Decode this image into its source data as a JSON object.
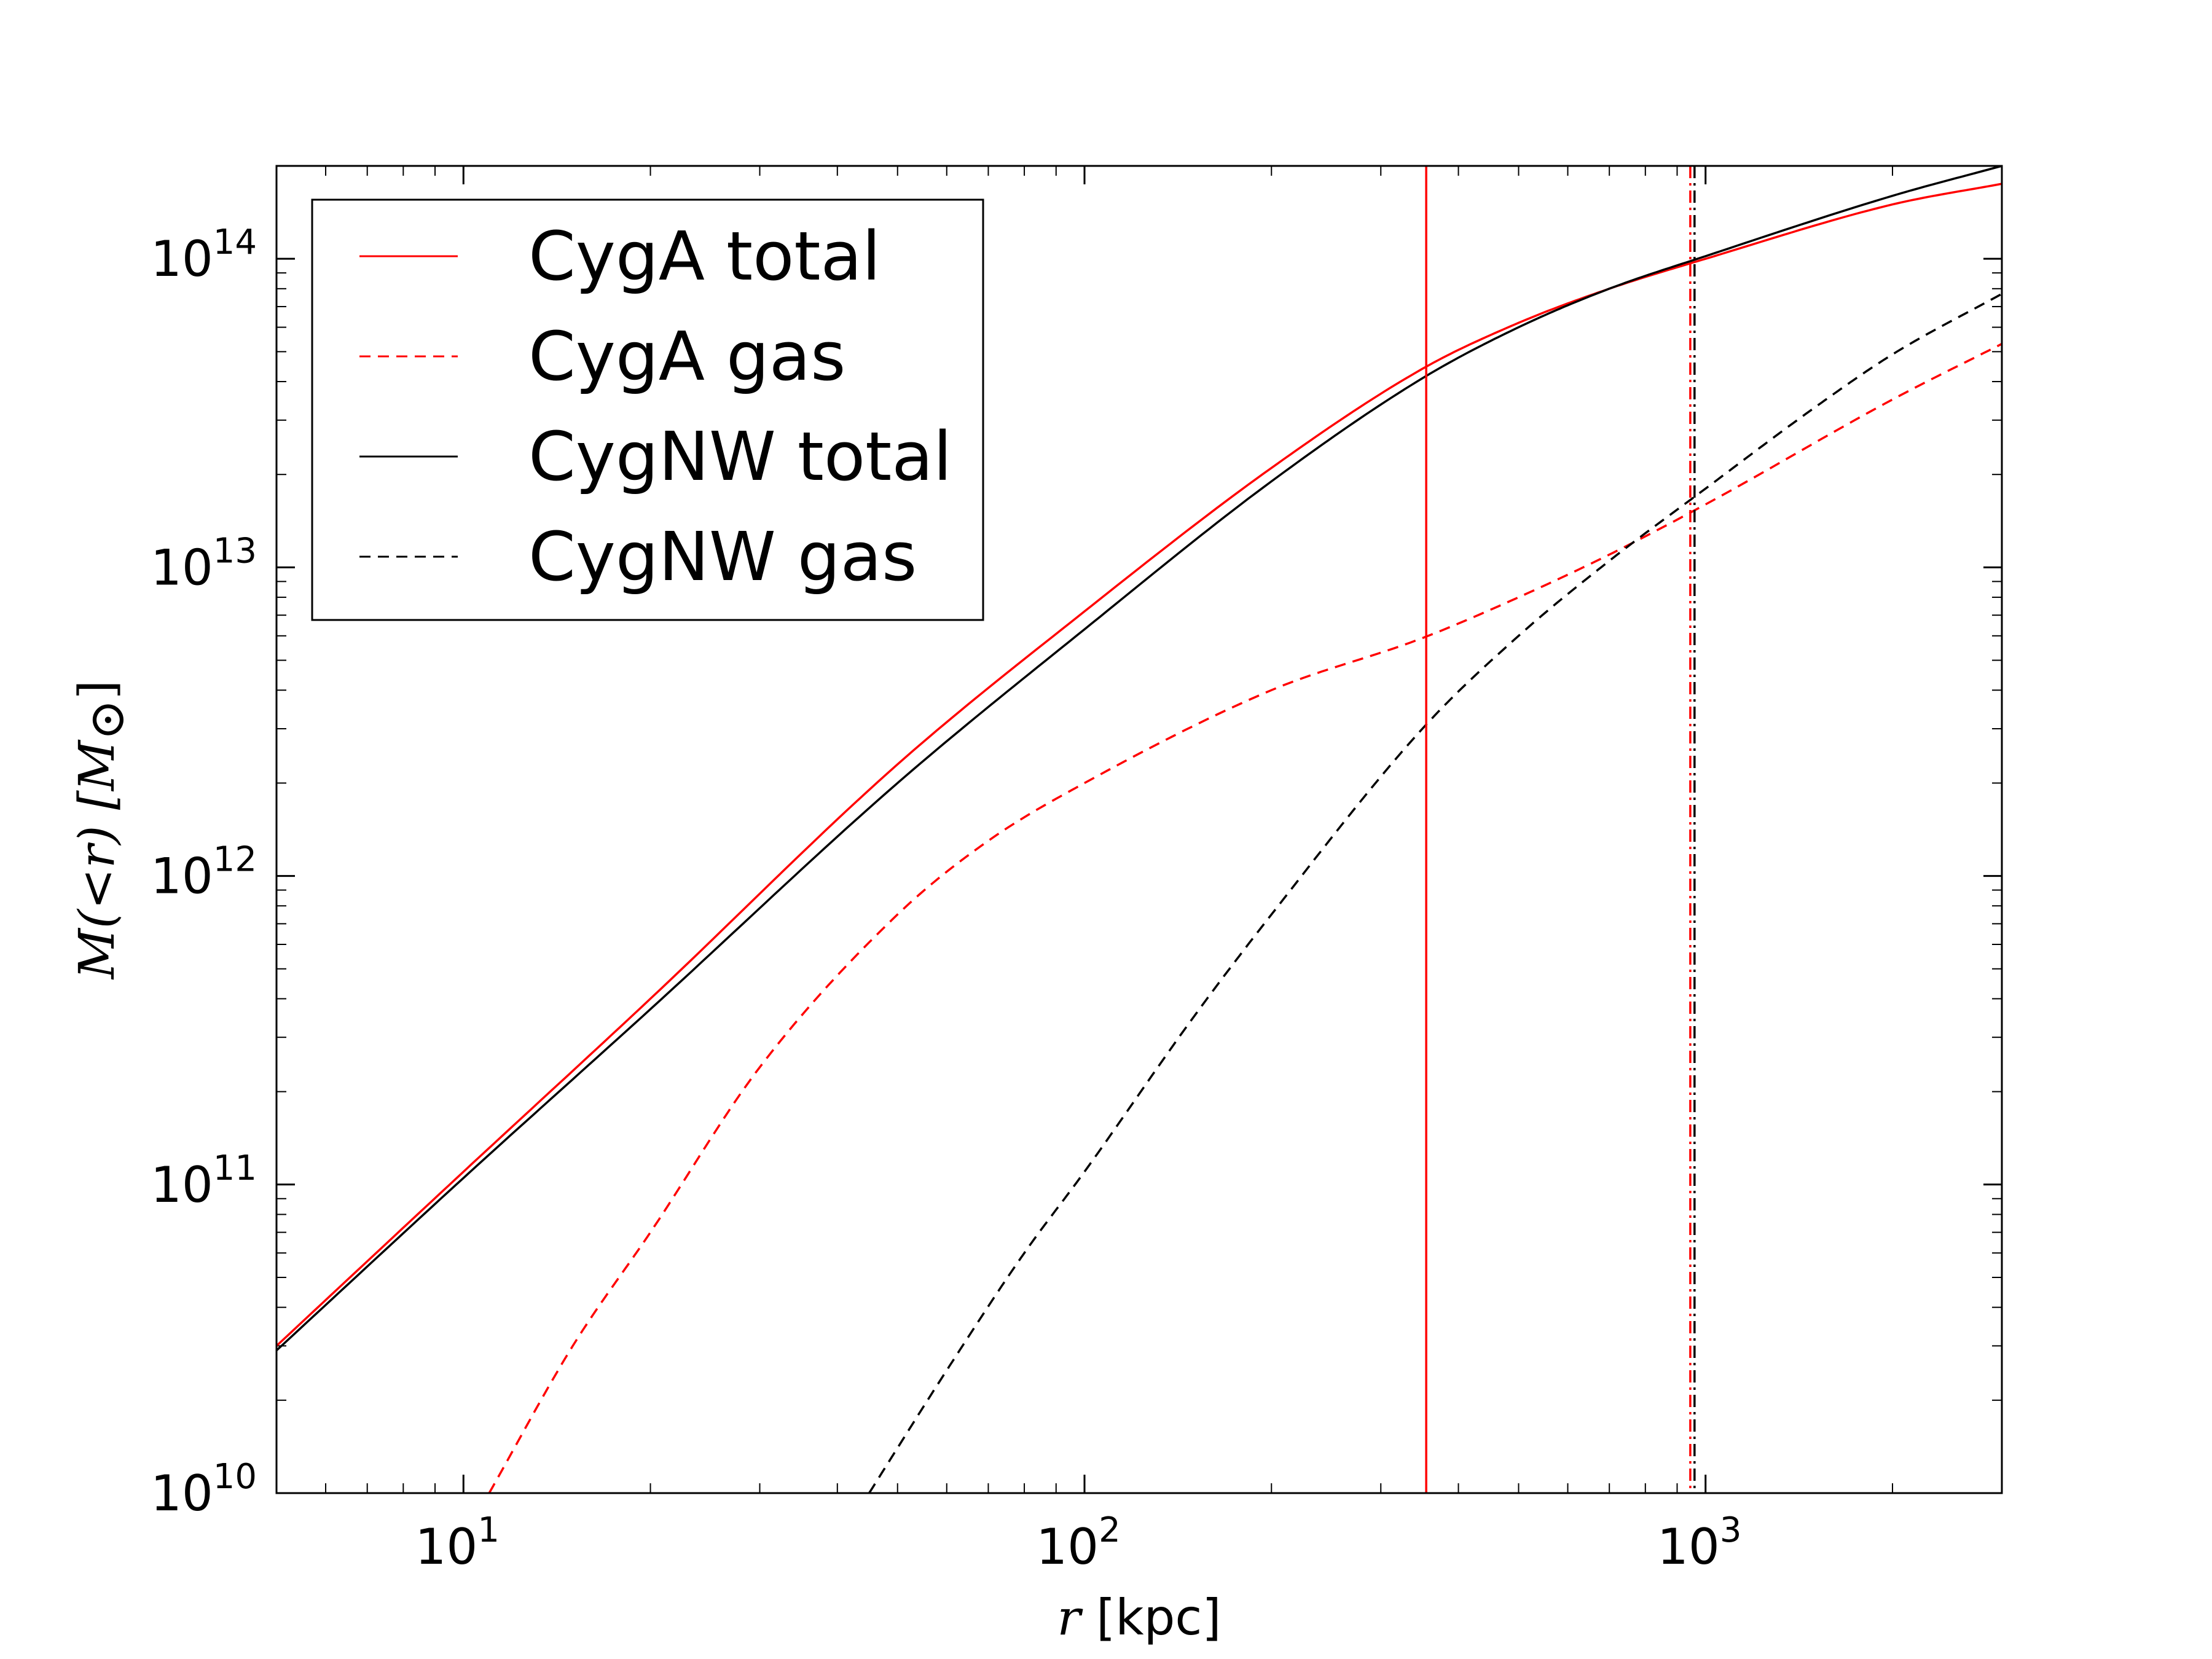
{
  "chart_data": {
    "type": "line",
    "xscale": "log",
    "yscale": "log",
    "xlim": [
      5,
      3000
    ],
    "ylim": [
      10000000000.0,
      200000000000000.0
    ],
    "xlabel": {
      "var": "r",
      "unit": " [kpc]"
    },
    "ylabel": {
      "text": "M(<r) [M",
      "sub": "⊙",
      "close": "]"
    },
    "x_ticks": [
      {
        "value": 10,
        "base": "10",
        "exp": "1"
      },
      {
        "value": 100,
        "base": "10",
        "exp": "2"
      },
      {
        "value": 1000,
        "base": "10",
        "exp": "3"
      }
    ],
    "y_ticks": [
      {
        "value": 10000000000.0,
        "base": "10",
        "exp": "10"
      },
      {
        "value": 100000000000.0,
        "base": "10",
        "exp": "11"
      },
      {
        "value": 1000000000000.0,
        "base": "10",
        "exp": "12"
      },
      {
        "value": 10000000000000.0,
        "base": "10",
        "exp": "13"
      },
      {
        "value": 100000000000000.0,
        "base": "10",
        "exp": "14"
      }
    ],
    "legend_position": "top-left",
    "series": [
      {
        "name": "CygA total",
        "color": "#ff0000",
        "dash": "solid",
        "x": [
          5,
          10,
          20,
          50,
          100,
          200,
          350,
          500,
          700,
          1000,
          2000,
          3000
        ],
        "y": [
          30000000000.0,
          110000000000.0,
          400000000000.0,
          2300000000000.0,
          7200000000000.0,
          21000000000000.0,
          44000000000000.0,
          62000000000000.0,
          80000000000000.0,
          100000000000000.0,
          150000000000000.0,
          175000000000000.0
        ]
      },
      {
        "name": "CygA gas",
        "color": "#ff0000",
        "dash": "dashed",
        "x": [
          11,
          15,
          20,
          30,
          50,
          70,
          100,
          200,
          350,
          500,
          700,
          1000,
          2000,
          3000
        ],
        "y": [
          10000000000.0,
          30000000000.0,
          70000000000.0,
          240000000000.0,
          750000000000.0,
          1300000000000.0,
          2000000000000.0,
          4000000000000.0,
          5900000000000.0,
          8000000000000.0,
          11000000000000.0,
          16000000000000.0,
          35000000000000.0,
          53000000000000.0
        ]
      },
      {
        "name": "CygNW total",
        "color": "#000000",
        "dash": "solid",
        "x": [
          5,
          10,
          20,
          50,
          100,
          200,
          350,
          500,
          700,
          1000,
          2000,
          3000
        ],
        "y": [
          29000000000.0,
          105000000000.0,
          370000000000.0,
          2000000000000.0,
          6300000000000.0,
          19000000000000.0,
          41000000000000.0,
          60000000000000.0,
          80000000000000.0,
          102000000000000.0,
          160000000000000.0,
          200000000000000.0
        ]
      },
      {
        "name": "CygNW gas",
        "color": "#000000",
        "dash": "dashed",
        "x": [
          45,
          60,
          80,
          100,
          150,
          200,
          350,
          500,
          700,
          1000,
          1500,
          2000,
          3000
        ],
        "y": [
          10000000000.0,
          25000000000.0,
          60000000000.0,
          110000000000.0,
          350000000000.0,
          750000000000.0,
          3000000000000.0,
          6000000000000.0,
          10500000000000.0,
          18000000000000.0,
          33000000000000.0,
          49000000000000.0,
          77000000000000.0
        ]
      }
    ],
    "vertical_lines": [
      {
        "x": 355,
        "color": "#ff0000",
        "dash": "solid"
      },
      {
        "x": 945,
        "color": "#ff0000",
        "dash": "dashdot"
      },
      {
        "x": 960,
        "color": "#000000",
        "dash": "dashdot"
      }
    ]
  }
}
